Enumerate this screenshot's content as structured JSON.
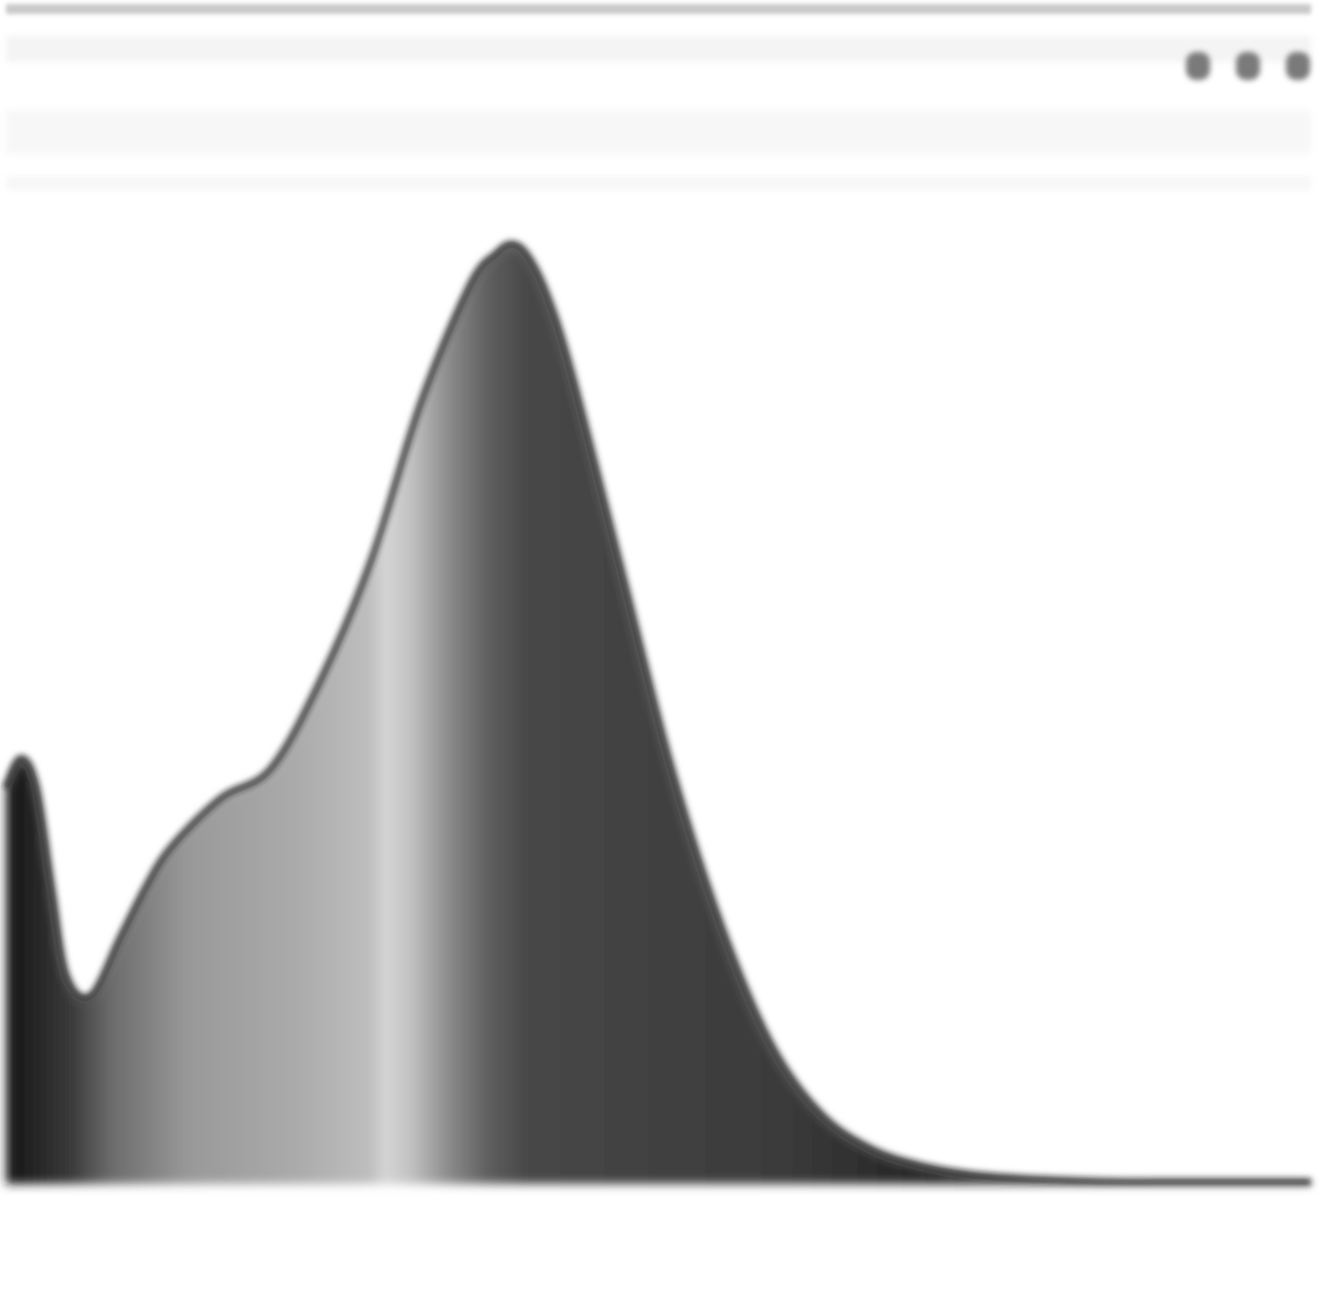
{
  "toolbar": {
    "icons": [
      "zoom-icon",
      "pan-icon",
      "more-icon"
    ]
  },
  "chart_data": {
    "type": "area",
    "title": "",
    "xlabel": "",
    "ylabel": "",
    "x_ticks": [
      {
        "value": 500,
        "label": ""
      },
      {
        "value": 600,
        "label": ""
      },
      {
        "value": 700,
        "label": ""
      }
    ],
    "xlim": [
      467,
      728
    ],
    "ylim": [
      0,
      1.0
    ],
    "grid": false,
    "legend": "none",
    "fill_style": "wavelength-gradient grayscale",
    "series": [
      {
        "x": [
          467,
          470,
          473,
          476,
          479,
          484,
          490,
          495,
          500,
          510,
          520,
          530,
          540,
          550,
          560,
          565,
          568,
          571,
          575,
          580,
          590,
          600,
          610,
          620,
          630,
          640,
          650,
          660,
          670,
          680,
          690,
          700,
          710,
          720,
          728
        ],
        "y": [
          0.4,
          0.43,
          0.4,
          0.3,
          0.21,
          0.19,
          0.25,
          0.3,
          0.34,
          0.39,
          0.42,
          0.51,
          0.63,
          0.79,
          0.91,
          0.94,
          0.95,
          0.94,
          0.9,
          0.82,
          0.62,
          0.42,
          0.26,
          0.14,
          0.07,
          0.035,
          0.018,
          0.009,
          0.005,
          0.003,
          0.002,
          0.002,
          0.002,
          0.002,
          0.002
        ]
      }
    ]
  }
}
